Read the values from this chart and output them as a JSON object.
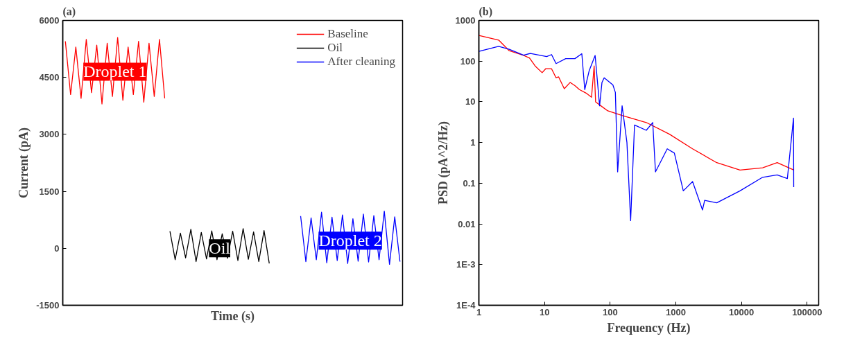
{
  "chart_data": [
    {
      "type": "line",
      "title": "(a)",
      "xlabel": "Time (s)",
      "ylabel": "Current (pA)",
      "categories": [
        null,
        null,
        null,
        null,
        null,
        null,
        null,
        null,
        null,
        null,
        null,
        null,
        null,
        null,
        null,
        null,
        null,
        null,
        null,
        null,
        null,
        null,
        null,
        null,
        null,
        null,
        null,
        null,
        null,
        null,
        null,
        null,
        null,
        null,
        null,
        null,
        null,
        null,
        null,
        null,
        null,
        null,
        null,
        null,
        null,
        null,
        null,
        null,
        null,
        null,
        null,
        null,
        null,
        null,
        null,
        null,
        null,
        null,
        null,
        null,
        null,
        null,
        null,
        null,
        null
      ],
      "series": [
        {
          "name": "Baseline",
          "color": "#ff0000",
          "values": [
            5450,
            4050,
            5300,
            3950,
            5500,
            4100,
            5350,
            3800,
            5400,
            4000,
            5550,
            3900,
            5300,
            4050,
            5450,
            3850,
            5400,
            4000,
            5500,
            3950,
            null,
            null,
            null,
            null,
            null,
            null,
            null,
            null,
            null,
            null,
            null,
            null,
            null,
            null,
            null,
            null,
            null,
            null,
            null,
            null,
            null,
            null,
            null,
            null,
            null,
            null,
            null,
            null,
            null,
            null,
            null,
            null,
            null,
            null,
            null,
            null,
            null,
            null,
            null,
            null,
            null,
            null,
            null,
            null,
            null
          ]
        },
        {
          "name": "Oil",
          "color": "#000000",
          "values": [
            null,
            null,
            null,
            null,
            null,
            null,
            null,
            null,
            null,
            null,
            null,
            null,
            null,
            null,
            null,
            null,
            null,
            null,
            null,
            null,
            450,
            -300,
            400,
            -250,
            500,
            -350,
            420,
            -280,
            460,
            -300,
            380,
            -260,
            450,
            -320,
            520,
            -290,
            430,
            -350,
            470,
            -400,
            null,
            null,
            null,
            null,
            null,
            null,
            null,
            null,
            null,
            null,
            null,
            null,
            null,
            null,
            null,
            null,
            null,
            null,
            null,
            null,
            null,
            null,
            null,
            null,
            null
          ]
        },
        {
          "name": "After cleaning",
          "color": "#0000ff",
          "values": [
            null,
            null,
            null,
            null,
            null,
            null,
            null,
            null,
            null,
            null,
            null,
            null,
            null,
            null,
            null,
            null,
            null,
            null,
            null,
            null,
            null,
            null,
            null,
            null,
            null,
            null,
            null,
            null,
            null,
            null,
            null,
            null,
            null,
            null,
            null,
            null,
            null,
            null,
            null,
            null,
            null,
            null,
            null,
            null,
            null,
            850,
            -350,
            800,
            -300,
            950,
            -380,
            820,
            -320,
            880,
            -400,
            780,
            -340,
            900,
            -360,
            860,
            -300,
            980,
            -420,
            830,
            -350
          ]
        }
      ],
      "annotations": [
        {
          "text": "Droplet 1",
          "y": 4650
        },
        {
          "text": "Oil",
          "y": 0
        },
        {
          "text": "Droplet 2",
          "y": 200
        }
      ],
      "ylim": [
        -1500,
        6000
      ],
      "yticks": [
        -1500,
        0,
        1500,
        3000,
        4500,
        6000
      ],
      "tick_labels": "y",
      "legend": "top right",
      "grid": false
    },
    {
      "type": "line",
      "title": "(b)",
      "xlabel": "Frequency (Hz)",
      "ylabel": "PSD (pA^2/Hz)",
      "log": "xy",
      "xlim": [
        1,
        150000
      ],
      "ylim": [
        0.0001,
        1000
      ],
      "xticks": [
        1,
        10,
        100,
        1000,
        10000,
        100000
      ],
      "yticks": [
        {
          "value": 0.0001,
          "label": "1E-4"
        },
        {
          "value": 0.001,
          "label": "1E-3"
        },
        {
          "value": 0.01,
          "label": "0.01"
        },
        {
          "value": 0.1,
          "label": "0.1"
        },
        {
          "value": 1,
          "label": "1"
        },
        {
          "value": 10,
          "label": "10"
        },
        {
          "value": 100,
          "label": "100"
        },
        {
          "value": 1000,
          "label": "1000"
        }
      ],
      "series": [
        {
          "color": "#ff0000",
          "x": [
            1,
            2,
            2.9,
            4.8,
            5.9,
            7.2,
            9.2,
            10.4,
            12.8,
            15,
            16.4,
            20,
            24.6,
            29,
            34,
            44,
            52,
            57,
            60,
            72,
            92,
            152,
            355,
            800,
            1800,
            4200,
            9500,
            21000,
            35000,
            63000
          ],
          "values": [
            430,
            330,
            180,
            138,
            120,
            76,
            52,
            65,
            65,
            39,
            41,
            21,
            30,
            25,
            20,
            16,
            13,
            76,
            10,
            8,
            6,
            4.6,
            3.1,
            1.6,
            0.7,
            0.32,
            0.21,
            0.24,
            0.32,
            0.21
          ]
        },
        {
          "color": "#0000ff",
          "x": [
            1,
            2,
            2.9,
            4.8,
            6.1,
            10.8,
            12.8,
            15,
            21,
            29,
            37,
            41,
            48,
            59,
            69,
            75,
            81,
            110,
            120,
            130,
            152,
            180,
            205,
            235,
            355,
            445,
            490,
            740,
            950,
            1300,
            1800,
            2550,
            2750,
            4200,
            9500,
            21000,
            35000,
            50000,
            62000,
            62500
          ],
          "values": [
            174,
            230,
            195,
            140,
            155,
            130,
            145,
            87,
            115,
            115,
            152,
            20,
            59,
            138,
            8,
            30,
            39,
            26,
            17,
            0.19,
            8,
            1,
            0.012,
            2.7,
            2,
            3.1,
            0.19,
            0.7,
            0.55,
            0.065,
            0.11,
            0.022,
            0.038,
            0.033,
            0.065,
            0.14,
            0.16,
            0.13,
            4,
            0.08
          ]
        }
      ],
      "grid": false,
      "legend": false
    }
  ]
}
